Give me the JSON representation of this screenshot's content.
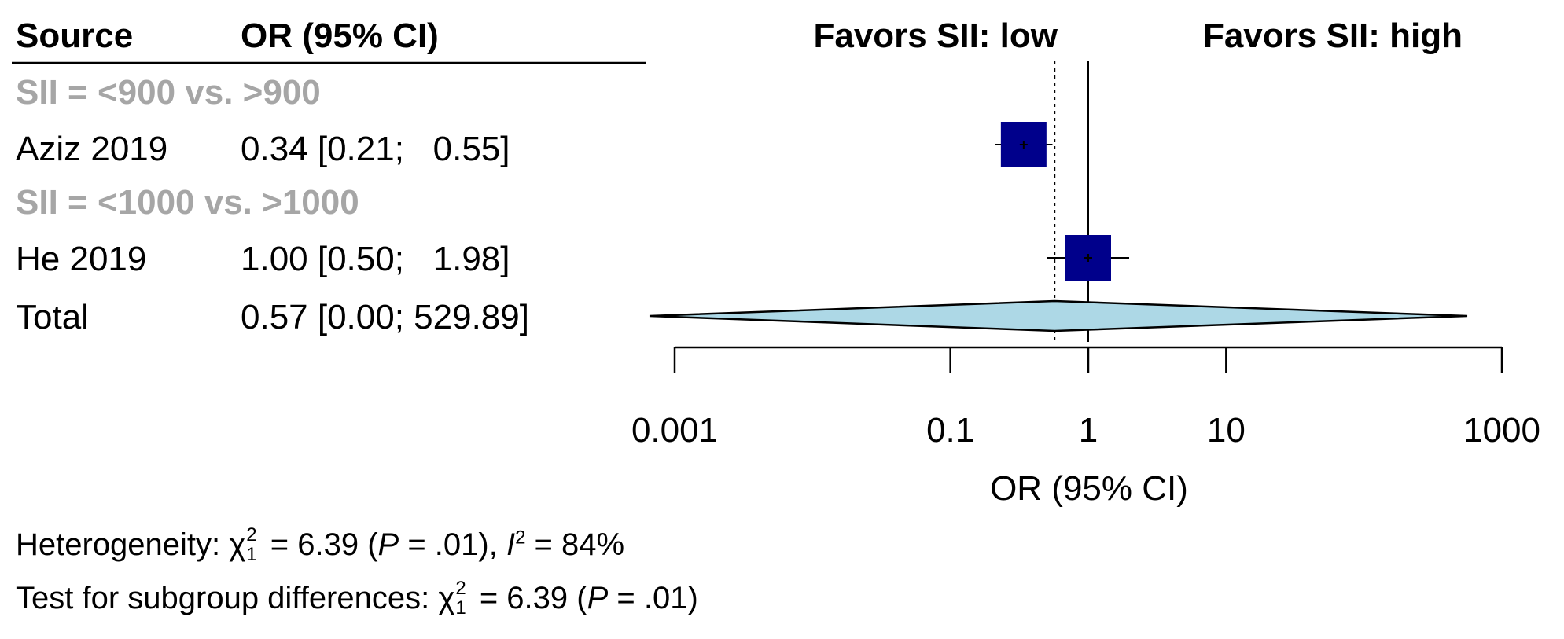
{
  "header": {
    "source_label": "Source",
    "or_label": "OR (95% CI)",
    "favors_low": "Favors SII: low",
    "favors_high": "Favors SII: high"
  },
  "rows": [
    {
      "kind": "group",
      "label": "SII = <900 vs. >900"
    },
    {
      "kind": "study",
      "label": "Aziz 2019",
      "ci_text": "0.34 [0.21;   0.55]",
      "or": 0.34,
      "lo": 0.21,
      "hi": 0.55
    },
    {
      "kind": "group",
      "label": "SII = <1000 vs. >1000"
    },
    {
      "kind": "study",
      "label": "He 2019",
      "ci_text": "1.00 [0.50;   1.98]",
      "or": 1.0,
      "lo": 0.5,
      "hi": 1.98
    },
    {
      "kind": "total",
      "label": "Total",
      "ci_text": "0.57 [0.00; 529.89]",
      "or": 0.57,
      "lo": 0.0006,
      "hi": 529.89
    }
  ],
  "chart_data": {
    "type": "forest",
    "x_scale": "log",
    "x_ticks": [
      0.001,
      0.1,
      1,
      10,
      1000
    ],
    "x_tick_labels": [
      "0.001",
      "0.1",
      "1",
      "10",
      "1000"
    ],
    "xlim": [
      0.001,
      1000
    ],
    "xlabel": "OR (95% CI)",
    "reference_line": 1,
    "pooled_line": 0.57,
    "colors": {
      "square": "#00008b",
      "diamond_fill": "#add8e6",
      "group_text": "#a6a6a6"
    }
  },
  "heterogeneity": {
    "prefix": "Heterogeneity: ",
    "chi": "χ",
    "sup": "2",
    "sub": "1",
    "value": " = 6.39 (",
    "p": "P",
    "p_value": " = .01), ",
    "i": "I",
    "i_sup": "2",
    "i_value": " = 84%"
  },
  "subgroup_test": {
    "prefix": "Test for subgroup differences: ",
    "chi": "χ",
    "sup": "2",
    "sub": "1",
    "value": " = 6.39 (",
    "p": "P",
    "p_value": " = .01)"
  }
}
